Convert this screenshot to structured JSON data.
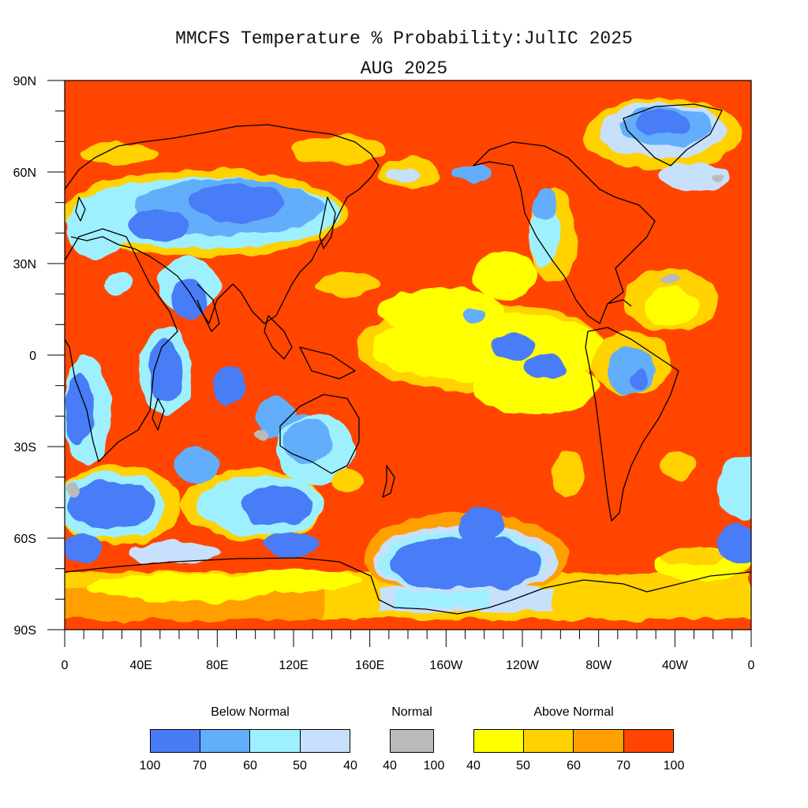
{
  "title": "MMCFS Temperature % Probability:JulIC 2025",
  "subtitle": "AUG 2025",
  "colors": {
    "ocean_base": "#ff4500",
    "land_outline": "#000000",
    "below_100_70": "#4a7bf7",
    "below_70_60": "#62aefa",
    "below_60_50": "#9ff0ff",
    "below_50_40": "#c7e0fc",
    "normal": "#bababa",
    "above_40_50": "#ffff00",
    "above_50_60": "#ffd200",
    "above_60_70": "#ffa000",
    "above_70_100": "#ff4500"
  },
  "axes": {
    "y_ticks": [
      "90N",
      "60N",
      "30N",
      "0",
      "30S",
      "60S",
      "90S"
    ],
    "x_ticks": [
      "0",
      "40E",
      "80E",
      "120E",
      "160E",
      "160W",
      "120W",
      "80W",
      "40W",
      "0"
    ]
  },
  "legend": {
    "below": {
      "label": "Below Normal",
      "ticks": [
        "100",
        "70",
        "60",
        "50",
        "40"
      ]
    },
    "normal": {
      "label": "Normal",
      "ticks": [
        "40",
        "100"
      ]
    },
    "above": {
      "label": "Above Normal",
      "ticks": [
        "40",
        "50",
        "60",
        "70",
        "100"
      ]
    }
  }
}
